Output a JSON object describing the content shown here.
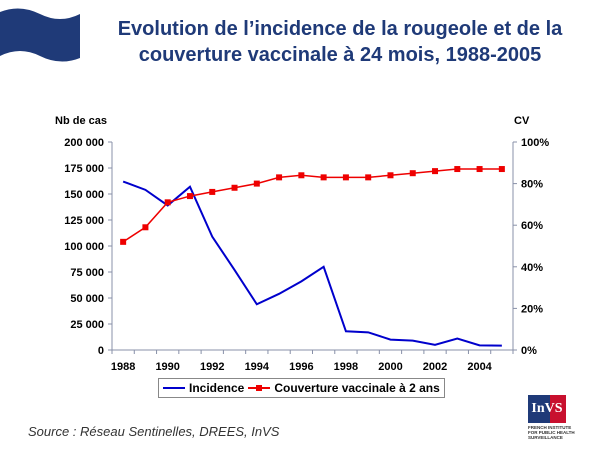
{
  "title": "Evolution de l’incidence de la rougeole et de la couverture vaccinale à 24 mois, 1988-2005",
  "source": "Source : Réseau Sentinelles, DREES, InVS",
  "logo": {
    "text": "InVS",
    "subtitle": "FRENCH INSTITUTE FOR PUBLIC HEALTH SURVEILLANCE"
  },
  "colors": {
    "incidence": "#0000cc",
    "coverage": "#ee0000",
    "title": "#1f3a78"
  },
  "chart_data": {
    "type": "line",
    "title": "Evolution de l’incidence de la rougeole et de la couverture vaccinale à 24 mois, 1988-2005",
    "ylabel": "Nb de cas",
    "y2label": "CV",
    "ylim": [
      0,
      200000
    ],
    "y2lim": [
      0,
      100
    ],
    "yticks": [
      "0",
      "25 000",
      "50 000",
      "75 000",
      "100 000",
      "125 000",
      "150 000",
      "175 000",
      "200 000"
    ],
    "y2ticks": [
      "0%",
      "20%",
      "40%",
      "60%",
      "80%",
      "100%"
    ],
    "x": [
      1988,
      1989,
      1990,
      1991,
      1992,
      1993,
      1994,
      1995,
      1996,
      1997,
      1998,
      1999,
      2000,
      2001,
      2002,
      2003,
      2004,
      2005
    ],
    "xticks": [
      "1988",
      "1990",
      "1992",
      "1994",
      "1996",
      "1998",
      "2000",
      "2002",
      "2004"
    ],
    "grid": false,
    "legend": "bottom",
    "series": [
      {
        "name": "Incidence",
        "axis": "left",
        "values": [
          162000,
          154000,
          139000,
          157000,
          109000,
          77000,
          44000,
          54000,
          66000,
          80000,
          18000,
          17000,
          10000,
          9000,
          5000,
          11000,
          4500,
          4200
        ]
      },
      {
        "name": "Couverture vaccinale à 2 ans",
        "axis": "right",
        "values": [
          52,
          59,
          71,
          74,
          76,
          78,
          80,
          83,
          84,
          83,
          83,
          83,
          84,
          85,
          86,
          87,
          87,
          87
        ]
      }
    ]
  }
}
